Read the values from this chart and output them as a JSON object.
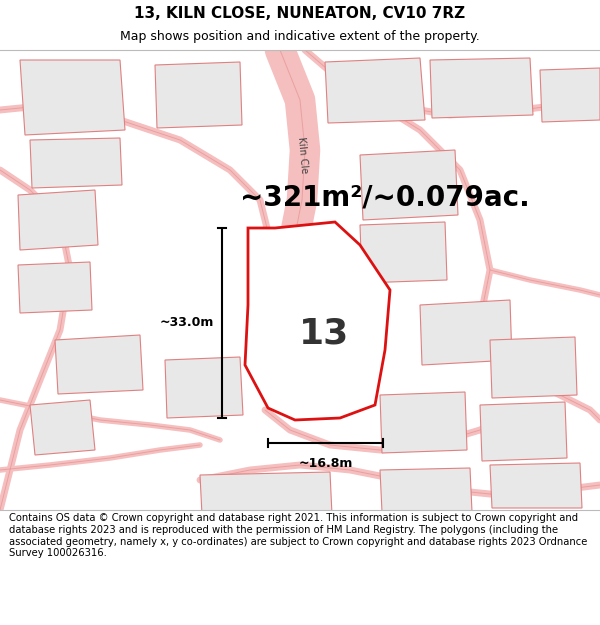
{
  "title": "13, KILN CLOSE, NUNEATON, CV10 7RZ",
  "subtitle": "Map shows position and indicative extent of the property.",
  "area_text": "~321m²/~0.079ac.",
  "plot_number": "13",
  "dim_width": "~16.8m",
  "dim_height": "~33.0m",
  "road_label": "Kiln Cle",
  "bg_color": "#ffffff",
  "plot_fill": "#ffffff",
  "plot_edge_color": "#dd1111",
  "road_color": "#f5bfbf",
  "road_outline": "#e08080",
  "other_plot_fill": "#e8e8e8",
  "other_plot_edge": "#e08080",
  "footer_text": "Contains OS data © Crown copyright and database right 2021. This information is subject to Crown copyright and database rights 2023 and is reproduced with the permission of HM Land Registry. The polygons (including the associated geometry, namely x, y co-ordinates) are subject to Crown copyright and database rights 2023 Ordnance Survey 100026316.",
  "title_fontsize": 11,
  "subtitle_fontsize": 9,
  "area_fontsize": 20,
  "footer_fontsize": 7.2
}
